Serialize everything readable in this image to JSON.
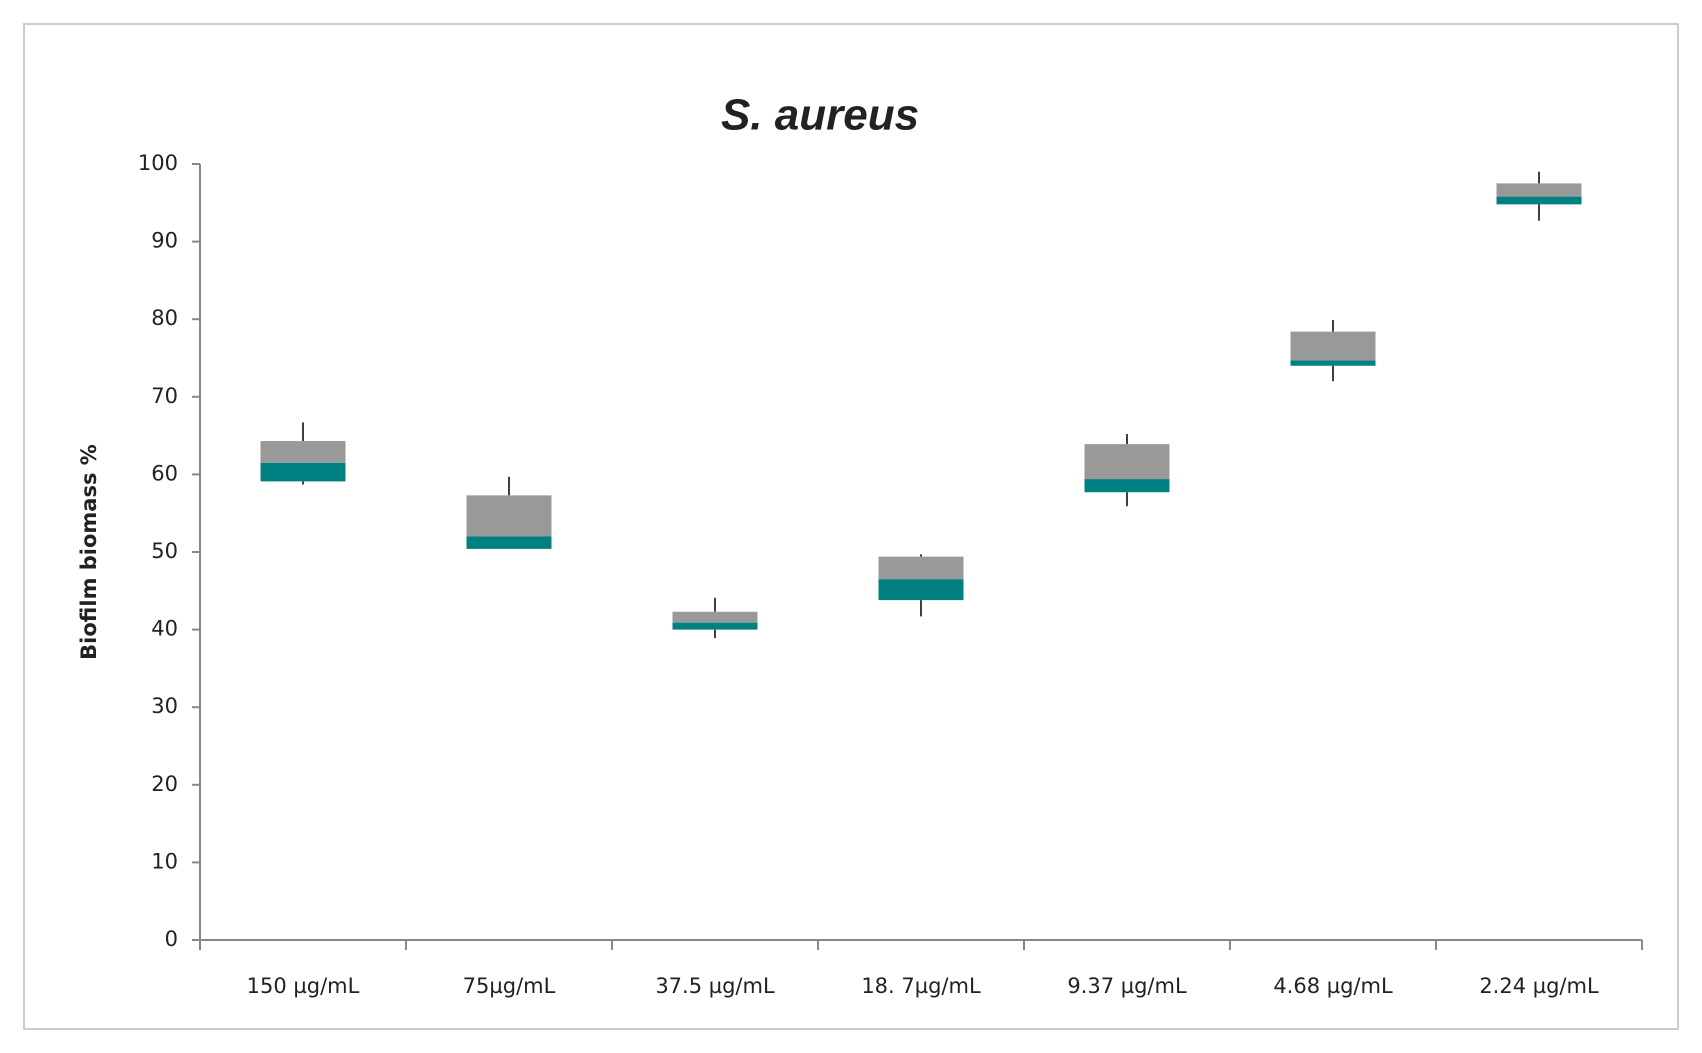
{
  "chart_data": {
    "type": "box",
    "title": "S. aureus",
    "y_label": "Biofilm biomass %",
    "categories": [
      "150 µg/mL",
      "75µg/mL",
      "37.5 µg/mL",
      "18. 7µg/mL",
      "9.37 µg/mL",
      "4.68 µg/mL",
      "2.24 µg/mL"
    ],
    "min": [
      58.7,
      50.4,
      38.9,
      41.7,
      55.9,
      72.0,
      92.7
    ],
    "q1": [
      59.1,
      50.4,
      40.0,
      43.8,
      57.7,
      74.0,
      94.8
    ],
    "median": [
      61.5,
      52.0,
      40.9,
      46.5,
      59.4,
      74.7,
      95.8
    ],
    "q3": [
      64.3,
      57.3,
      42.3,
      49.4,
      63.9,
      78.4,
      97.5
    ],
    "max": [
      66.7,
      59.7,
      44.1,
      49.7,
      65.2,
      79.9,
      99.0
    ],
    "lower_color": "#008080",
    "upper_color": "#999999",
    "ylim": [
      0,
      100
    ],
    "yticks": [
      0,
      10,
      20,
      30,
      40,
      50,
      60,
      70,
      80,
      90,
      100
    ],
    "grid": false
  }
}
